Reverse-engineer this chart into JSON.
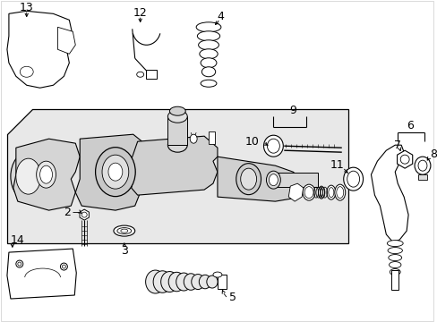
{
  "background_color": "#ffffff",
  "image_data": "target_image"
}
